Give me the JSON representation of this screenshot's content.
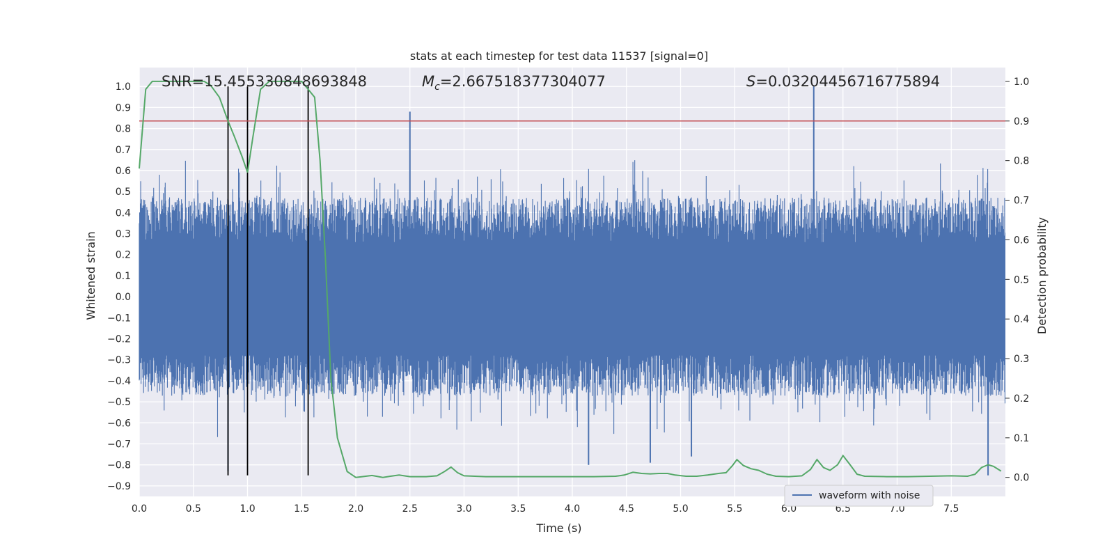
{
  "chart_data": {
    "type": "line",
    "title": "stats at each timestep for test data 11537 [signal=0]",
    "xlabel": "Time (s)",
    "ylabel": "Whitened strain",
    "ylabel_right": "Detection probability",
    "xlim": [
      0.0,
      8.0
    ],
    "ylim": [
      -0.95,
      1.09
    ],
    "ylim_right": [
      -0.048,
      1.035
    ],
    "xticks": [
      "0.0",
      "0.5",
      "1.0",
      "1.5",
      "2.0",
      "2.5",
      "3.0",
      "3.5",
      "4.0",
      "4.5",
      "5.0",
      "5.5",
      "6.0",
      "6.5",
      "7.0",
      "7.5"
    ],
    "yticks": [
      "-0.9",
      "-0.8",
      "-0.7",
      "-0.6",
      "-0.5",
      "-0.4",
      "-0.3",
      "-0.2",
      "-0.1",
      "0.0",
      "0.1",
      "0.2",
      "0.3",
      "0.4",
      "0.5",
      "0.6",
      "0.7",
      "0.8",
      "0.9",
      "1.0"
    ],
    "yticks_right": [
      "0.0",
      "0.1",
      "0.2",
      "0.3",
      "0.4",
      "0.5",
      "0.6",
      "0.7",
      "0.8",
      "0.9",
      "1.0"
    ],
    "grid": true,
    "legend_position": "lower-right",
    "colors": {
      "background": "#eaeaf2",
      "waveform": "#4c72b0",
      "probability": "#55a868",
      "threshold": "#c44e52",
      "marker": "#000000"
    },
    "annotations": {
      "snr": "SNR=15.455330848693848",
      "mc_symbol": "M",
      "mc_sub": "c",
      "mc_value": "=2.667518377304077",
      "s_symbol": "S",
      "s_value": "=0.03204456716775894"
    },
    "series": [
      {
        "name": "waveform with noise",
        "axis": "left",
        "note_envelope": "dense noise waveform, typical extent",
        "envelope_upper": 0.45,
        "envelope_lower": -0.45,
        "peak_max": 1.0,
        "peak_min": -0.88,
        "spikes": [
          {
            "x": 2.5,
            "y": 0.88
          },
          {
            "x": 6.23,
            "y": 1.0
          },
          {
            "x": 7.84,
            "y": -0.85
          },
          {
            "x": 0.82,
            "y": -0.83
          },
          {
            "x": 4.15,
            "y": -0.8
          },
          {
            "x": 4.72,
            "y": -0.79
          },
          {
            "x": 5.1,
            "y": -0.76
          }
        ]
      },
      {
        "name": "detection probability",
        "axis": "right",
        "x": [
          0.0,
          0.06,
          0.12,
          0.2,
          0.3,
          0.4,
          0.5,
          0.6,
          0.66,
          0.74,
          0.82,
          0.88,
          0.95,
          1.0,
          1.05,
          1.12,
          1.2,
          1.3,
          1.4,
          1.5,
          1.56,
          1.62,
          1.67,
          1.72,
          1.77,
          1.83,
          1.92,
          2.0,
          2.06,
          2.15,
          2.25,
          2.32,
          2.4,
          2.5,
          2.65,
          2.75,
          2.82,
          2.88,
          2.94,
          3.0,
          3.2,
          3.4,
          3.6,
          3.8,
          4.0,
          4.2,
          4.4,
          4.48,
          4.56,
          4.64,
          4.72,
          4.8,
          4.88,
          4.95,
          5.05,
          5.15,
          5.25,
          5.35,
          5.42,
          5.48,
          5.52,
          5.58,
          5.65,
          5.72,
          5.8,
          5.88,
          6.0,
          6.12,
          6.2,
          6.26,
          6.32,
          6.38,
          6.45,
          6.5,
          6.56,
          6.63,
          6.7,
          6.9,
          7.1,
          7.3,
          7.5,
          7.65,
          7.72,
          7.78,
          7.84,
          7.89,
          7.96
        ],
        "y": [
          0.78,
          0.98,
          1.0,
          1.0,
          1.0,
          1.0,
          1.0,
          1.0,
          0.99,
          0.96,
          0.9,
          0.86,
          0.81,
          0.77,
          0.86,
          0.98,
          1.0,
          1.0,
          1.0,
          1.0,
          0.98,
          0.96,
          0.8,
          0.55,
          0.25,
          0.1,
          0.015,
          0.0,
          0.002,
          0.005,
          0.0,
          0.003,
          0.006,
          0.002,
          0.002,
          0.004,
          0.015,
          0.026,
          0.012,
          0.004,
          0.002,
          0.002,
          0.002,
          0.002,
          0.002,
          0.002,
          0.003,
          0.006,
          0.013,
          0.01,
          0.009,
          0.01,
          0.01,
          0.006,
          0.003,
          0.003,
          0.006,
          0.01,
          0.012,
          0.03,
          0.045,
          0.03,
          0.022,
          0.018,
          0.008,
          0.003,
          0.002,
          0.004,
          0.02,
          0.045,
          0.025,
          0.018,
          0.032,
          0.055,
          0.034,
          0.008,
          0.003,
          0.002,
          0.002,
          0.003,
          0.004,
          0.003,
          0.008,
          0.025,
          0.032,
          0.028,
          0.016
        ]
      }
    ],
    "threshold_right": 0.9,
    "vertical_markers_x": [
      0.82,
      1.0,
      1.56
    ],
    "vertical_markers_ymin": -0.85,
    "vertical_markers_ymax": 1.0
  }
}
